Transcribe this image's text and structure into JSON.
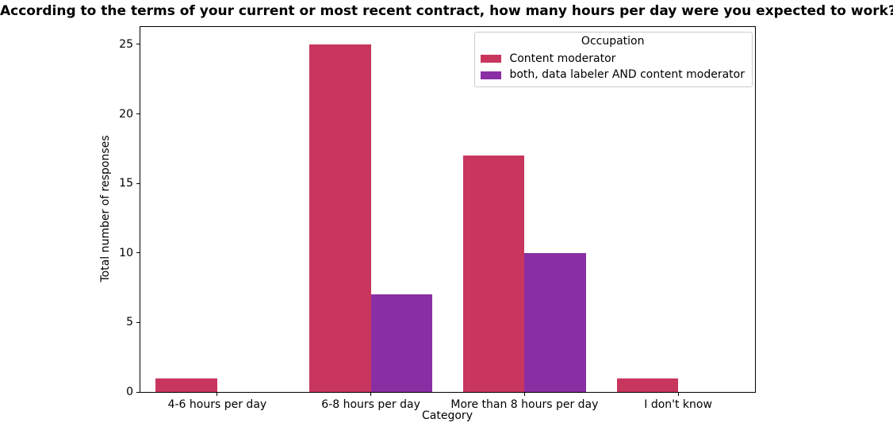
{
  "chart_data": {
    "type": "bar",
    "title": "According to the terms of your current or most recent contract, how many hours per day were you expected to work?",
    "xlabel": "Category",
    "ylabel": "Total number of responses",
    "categories": [
      "4-6 hours per day",
      "6-8 hours per day",
      "More than 8 hours per day",
      "I don't know"
    ],
    "series": [
      {
        "name": "Content moderator",
        "color": "#c8365e",
        "values": [
          1,
          25,
          17,
          1
        ]
      },
      {
        "name": "both, data labeler AND content moderator",
        "color": "#8a2ea4",
        "values": [
          0,
          7,
          10,
          0
        ]
      }
    ],
    "legend_title": "Occupation",
    "legend_position": "upper right",
    "ylim": [
      0,
      26.25
    ],
    "yticks": [
      0,
      5,
      10,
      15,
      20,
      25
    ],
    "grid": false,
    "group_bar_fraction": 0.8
  }
}
